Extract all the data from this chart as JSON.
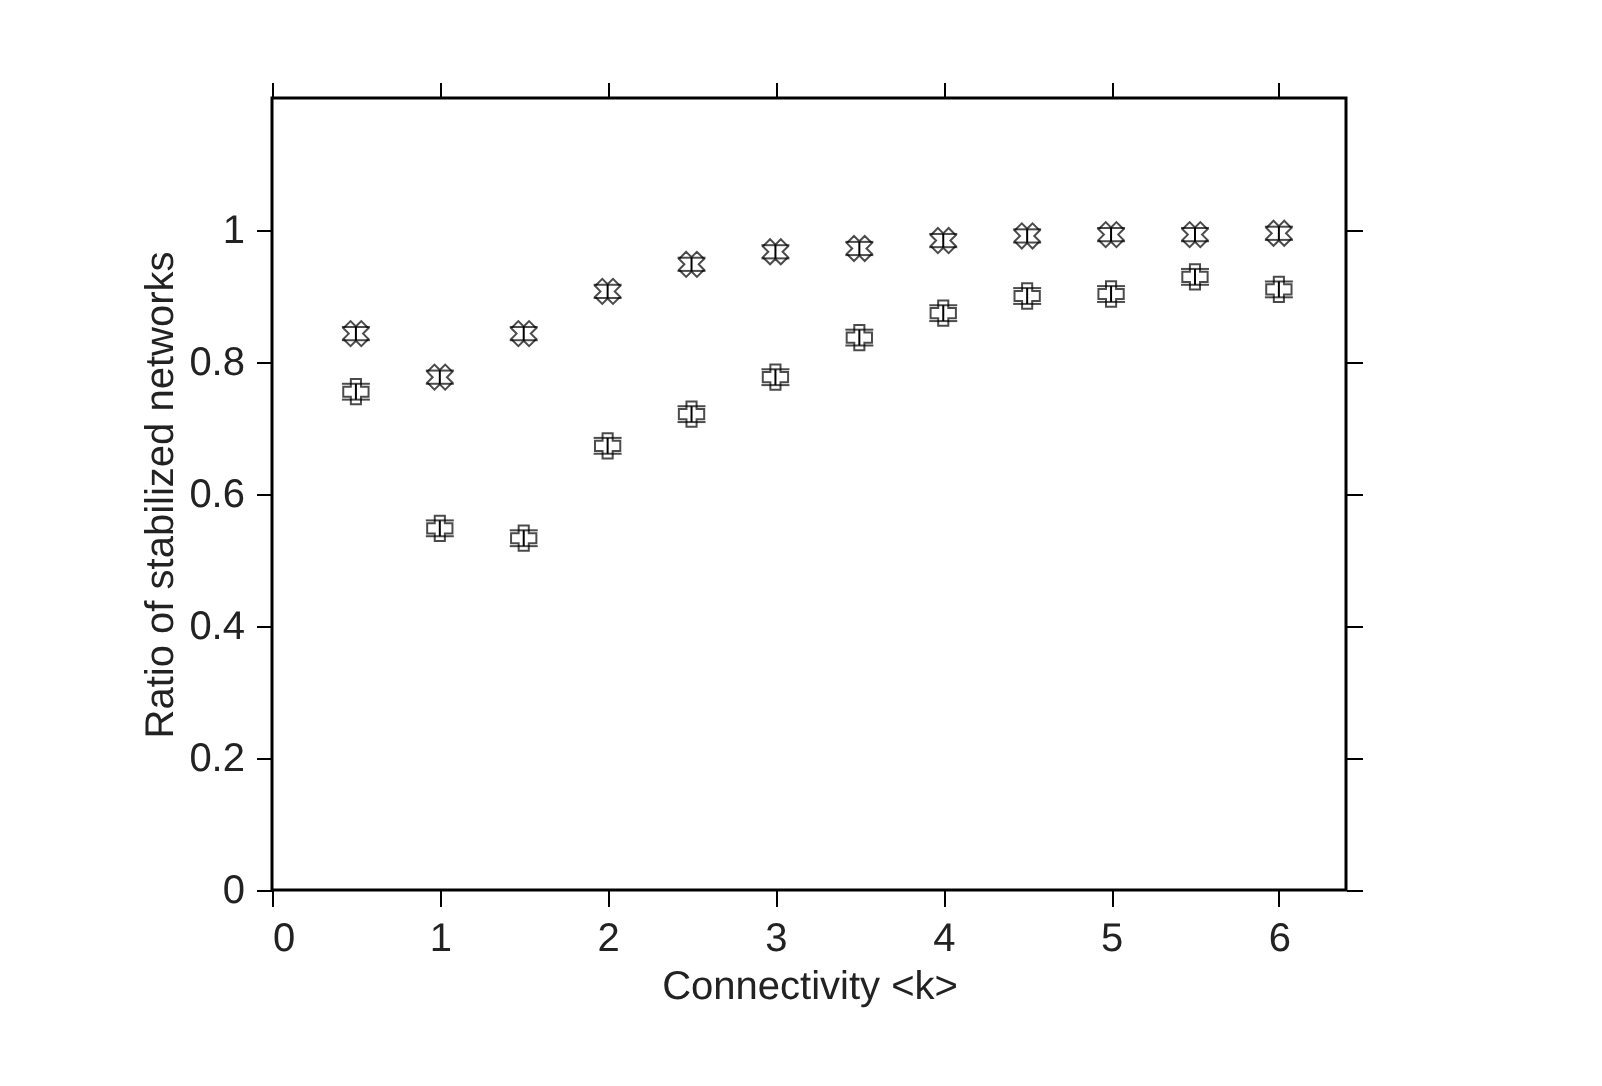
{
  "chart_data": {
    "type": "scatter",
    "xlabel": "Connectivity <k>",
    "ylabel": "Ratio of stabilized networks",
    "x": [
      0.5,
      1,
      1.5,
      2,
      2.5,
      3,
      3.5,
      4,
      4.5,
      5,
      5.5,
      6
    ],
    "series": [
      {
        "color": "#000000",
        "marker": "x",
        "values": [
          0.843,
          0.777,
          0.843,
          0.907,
          0.948,
          0.967,
          0.972,
          0.984,
          0.991,
          0.993,
          0.993,
          0.995
        ],
        "errors": [
          0.01,
          0.01,
          0.01,
          0.01,
          0.01,
          0.01,
          0.01,
          0.01,
          0.01,
          0.01,
          0.01,
          0.01
        ]
      },
      {
        "color": "#000000",
        "marker": "cross",
        "values": [
          0.755,
          0.548,
          0.533,
          0.673,
          0.721,
          0.777,
          0.837,
          0.874,
          0.9,
          0.903,
          0.929,
          0.91
        ],
        "errors": [
          0.012,
          0.012,
          0.012,
          0.012,
          0.012,
          0.012,
          0.012,
          0.012,
          0.012,
          0.012,
          0.012,
          0.012
        ]
      }
    ],
    "xlim": [
      0,
      6.4
    ],
    "ylim": [
      0,
      1.2
    ],
    "xticks": [
      0,
      1,
      2,
      3,
      4,
      5,
      6
    ],
    "yticks": [
      0,
      0.2,
      0.4,
      0.6,
      0.8,
      1
    ],
    "grid": false,
    "legend": false
  }
}
